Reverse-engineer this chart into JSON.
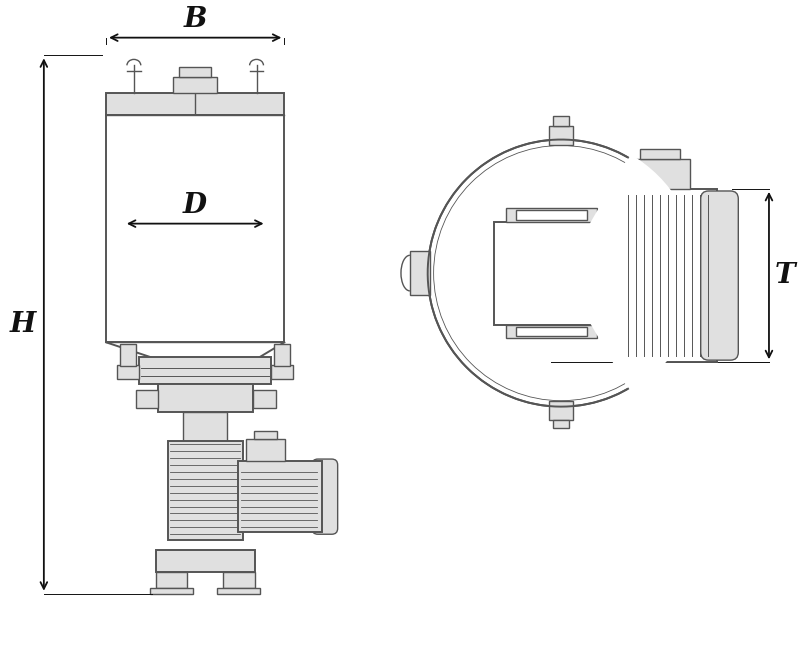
{
  "bg_color": "#ffffff",
  "line_color": "#555555",
  "dark_line": "#111111",
  "gray_fill": "#c8c8c8",
  "light_gray": "#e0e0e0",
  "mid_gray": "#aaaaaa",
  "fig_width": 8.0,
  "fig_height": 6.49,
  "labels": {
    "B": "B",
    "D": "D",
    "H": "H",
    "T": "T"
  },
  "label_fontsize": 20
}
